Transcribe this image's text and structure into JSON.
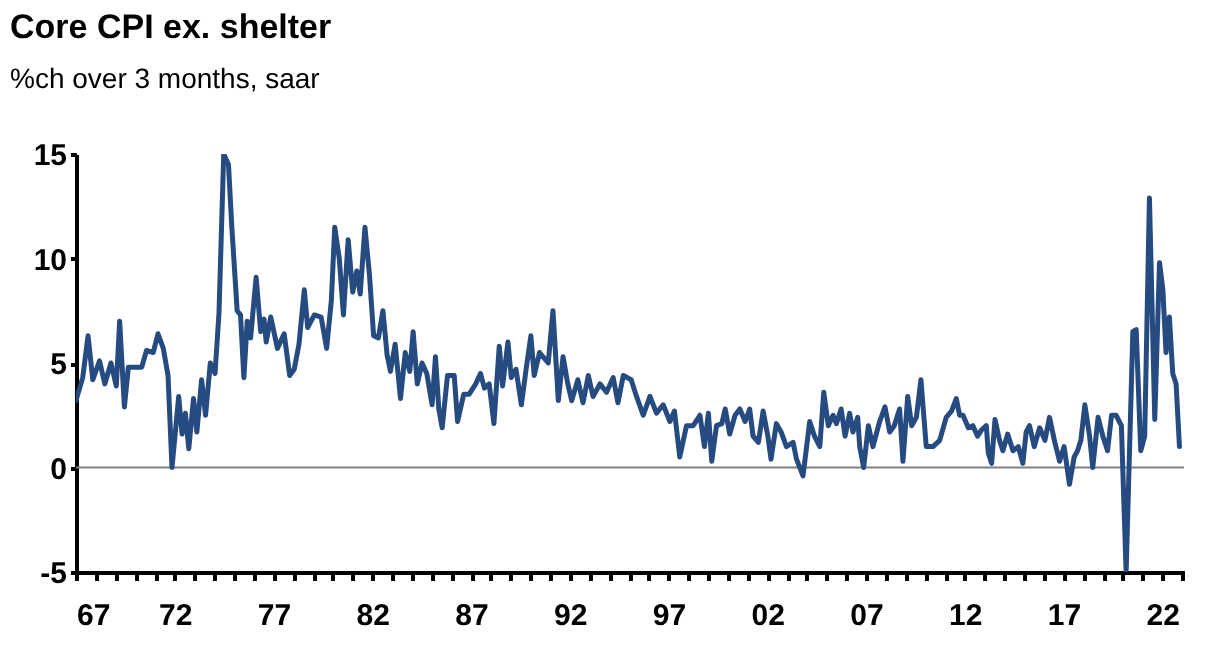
{
  "chart_data": {
    "type": "line",
    "title": "Core CPI ex. shelter",
    "subtitle": "%ch over 3 months, saar",
    "x": [
      1967.0,
      1967.34,
      1967.61,
      1967.85,
      1968.19,
      1968.46,
      1968.77,
      1969.04,
      1969.21,
      1969.45,
      1969.65,
      1970.33,
      1970.57,
      1970.91,
      1971.15,
      1971.42,
      1971.66,
      1971.86,
      1972.2,
      1972.37,
      1972.54,
      1972.71,
      1972.95,
      1973.12,
      1973.36,
      1973.56,
      1973.8,
      1974.04,
      1974.24,
      1974.48,
      1974.72,
      1974.89,
      1975.16,
      1975.33,
      1975.5,
      1975.67,
      1975.84,
      1976.12,
      1976.35,
      1976.52,
      1976.63,
      1976.86,
      1977.2,
      1977.54,
      1977.82,
      1978.05,
      1978.29,
      1978.56,
      1978.73,
      1979.07,
      1979.41,
      1979.69,
      1979.93,
      1980.1,
      1980.33,
      1980.54,
      1980.78,
      1981.01,
      1981.22,
      1981.39,
      1981.63,
      1981.86,
      1982.07,
      1982.31,
      1982.54,
      1982.75,
      1982.92,
      1983.16,
      1983.43,
      1983.67,
      1983.9,
      1984.07,
      1984.28,
      1984.52,
      1984.76,
      1985.03,
      1985.2,
      1985.37,
      1985.54,
      1985.81,
      1986.15,
      1986.32,
      1986.63,
      1986.9,
      1987.24,
      1987.48,
      1987.68,
      1987.92,
      1988.16,
      1988.43,
      1988.6,
      1988.87,
      1989.04,
      1989.28,
      1989.55,
      1989.79,
      1990.03,
      1990.2,
      1990.47,
      1990.91,
      1991.15,
      1991.42,
      1991.66,
      1991.9,
      1992.1,
      1992.41,
      1992.67,
      1992.94,
      1993.18,
      1993.53,
      1993.86,
      1994.2,
      1994.44,
      1994.71,
      1995.11,
      1995.38,
      1995.72,
      1996.06,
      1996.39,
      1996.73,
      1997.07,
      1997.3,
      1997.57,
      1997.91,
      1998.25,
      1998.59,
      1998.82,
      1999.02,
      1999.19,
      1999.43,
      1999.7,
      1999.87,
      2000.1,
      2000.37,
      2000.61,
      2000.88,
      2001.11,
      2001.28,
      2001.55,
      2001.79,
      2002.03,
      2002.19,
      2002.46,
      2002.7,
      2002.97,
      2003.31,
      2003.48,
      2003.81,
      2004.15,
      2004.39,
      2004.66,
      2004.86,
      2005.09,
      2005.33,
      2005.5,
      2005.74,
      2005.94,
      2006.17,
      2006.34,
      2006.58,
      2006.68,
      2006.88,
      2007.12,
      2007.35,
      2007.69,
      2007.96,
      2008.2,
      2008.43,
      2008.7,
      2008.87,
      2009.11,
      2009.31,
      2009.55,
      2009.78,
      2010.05,
      2010.39,
      2010.73,
      2011.06,
      2011.33,
      2011.57,
      2011.74,
      2011.91,
      2012.18,
      2012.41,
      2012.65,
      2012.85,
      2013.09,
      2013.19,
      2013.36,
      2013.53,
      2013.76,
      2013.93,
      2014.17,
      2014.44,
      2014.71,
      2014.94,
      2015.11,
      2015.28,
      2015.52,
      2015.79,
      2016.06,
      2016.29,
      2016.56,
      2016.8,
      2017.03,
      2017.3,
      2017.54,
      2017.71,
      2017.88,
      2018.08,
      2018.32,
      2018.48,
      2018.75,
      2018.99,
      2019.23,
      2019.43,
      2019.66,
      2019.93,
      2020.17,
      2020.51,
      2020.68,
      2020.91,
      2021.11,
      2021.35,
      2021.62,
      2021.86,
      2022.03,
      2022.19,
      2022.36,
      2022.53,
      2022.7,
      2022.87
    ],
    "series": [
      {
        "color": "#264b80",
        "values": [
          3.2,
          4.3,
          6.3,
          4.2,
          5.1,
          4.0,
          5.0,
          3.9,
          7.0,
          2.9,
          4.8,
          4.8,
          5.6,
          5.5,
          6.4,
          5.7,
          4.4,
          0.0,
          3.4,
          1.6,
          2.6,
          0.9,
          3.3,
          1.7,
          4.2,
          2.5,
          5.0,
          4.5,
          7.4,
          15.0,
          14.5,
          11.5,
          7.5,
          7.3,
          4.3,
          7.0,
          6.2,
          9.1,
          6.5,
          7.1,
          6.0,
          7.2,
          5.7,
          6.4,
          4.4,
          4.7,
          5.9,
          8.5,
          6.7,
          7.3,
          7.2,
          5.7,
          8.0,
          11.5,
          10.0,
          7.3,
          10.9,
          8.4,
          9.4,
          8.3,
          11.5,
          9.2,
          6.3,
          6.2,
          7.5,
          5.4,
          4.6,
          5.9,
          3.3,
          5.5,
          4.6,
          6.5,
          4.0,
          5.0,
          4.5,
          3.0,
          5.3,
          2.8,
          1.9,
          4.4,
          4.4,
          2.2,
          3.5,
          3.5,
          4.0,
          4.5,
          3.8,
          4.0,
          2.1,
          5.8,
          3.9,
          6.0,
          4.3,
          4.7,
          3.0,
          4.7,
          6.3,
          4.4,
          5.5,
          5.0,
          7.5,
          3.2,
          5.3,
          4.0,
          3.2,
          4.2,
          3.1,
          4.4,
          3.4,
          4.0,
          3.6,
          4.3,
          3.1,
          4.4,
          4.2,
          3.4,
          2.5,
          3.4,
          2.6,
          3.0,
          2.2,
          2.7,
          0.5,
          2.0,
          2.0,
          2.5,
          1.0,
          2.6,
          0.3,
          2.0,
          2.1,
          2.8,
          1.6,
          2.5,
          2.8,
          2.2,
          2.8,
          1.5,
          1.2,
          2.7,
          1.5,
          0.4,
          2.1,
          1.7,
          1.0,
          1.2,
          0.4,
          -0.4,
          2.2,
          1.5,
          1.0,
          3.6,
          2.0,
          2.5,
          2.1,
          2.8,
          1.5,
          2.6,
          1.7,
          2.4,
          1.0,
          0.0,
          2.0,
          1.0,
          2.2,
          2.9,
          1.7,
          2.0,
          2.8,
          0.3,
          3.4,
          2.0,
          2.4,
          4.2,
          1.0,
          1.0,
          1.3,
          2.4,
          2.7,
          3.3,
          2.5,
          2.5,
          1.9,
          2.0,
          1.5,
          1.8,
          2.0,
          0.7,
          0.2,
          2.3,
          1.3,
          0.8,
          1.6,
          0.8,
          1.0,
          0.2,
          1.7,
          2.0,
          1.0,
          1.9,
          1.3,
          2.4,
          1.2,
          0.3,
          1.0,
          -0.8,
          0.5,
          0.8,
          1.3,
          3.0,
          1.5,
          0.0,
          2.4,
          1.5,
          0.8,
          2.5,
          2.5,
          2.0,
          -5.0,
          6.5,
          6.6,
          0.8,
          1.5,
          12.9,
          2.3,
          9.8,
          8.5,
          5.5,
          7.2,
          4.5,
          4.0,
          1.0
        ]
      }
    ],
    "xlim": [
      1967,
      2023.1
    ],
    "xticks": [
      {
        "value": 1967,
        "label": "67"
      },
      {
        "value": 1968,
        "label": null
      },
      {
        "value": 1969,
        "label": null
      },
      {
        "value": 1970,
        "label": null
      },
      {
        "value": 1971,
        "label": null
      },
      {
        "value": 1972,
        "label": "72"
      },
      {
        "value": 1973,
        "label": null
      },
      {
        "value": 1974,
        "label": null
      },
      {
        "value": 1975,
        "label": null
      },
      {
        "value": 1976,
        "label": null
      },
      {
        "value": 1977,
        "label": "77"
      },
      {
        "value": 1978,
        "label": null
      },
      {
        "value": 1979,
        "label": null
      },
      {
        "value": 1980,
        "label": null
      },
      {
        "value": 1981,
        "label": null
      },
      {
        "value": 1982,
        "label": "82"
      },
      {
        "value": 1983,
        "label": null
      },
      {
        "value": 1984,
        "label": null
      },
      {
        "value": 1985,
        "label": null
      },
      {
        "value": 1986,
        "label": null
      },
      {
        "value": 1987,
        "label": "87"
      },
      {
        "value": 1988,
        "label": null
      },
      {
        "value": 1989,
        "label": null
      },
      {
        "value": 1990,
        "label": null
      },
      {
        "value": 1991,
        "label": null
      },
      {
        "value": 1992,
        "label": "92"
      },
      {
        "value": 1993,
        "label": null
      },
      {
        "value": 1994,
        "label": null
      },
      {
        "value": 1995,
        "label": null
      },
      {
        "value": 1996,
        "label": null
      },
      {
        "value": 1997,
        "label": "97"
      },
      {
        "value": 1998,
        "label": null
      },
      {
        "value": 1999,
        "label": null
      },
      {
        "value": 2000,
        "label": null
      },
      {
        "value": 2001,
        "label": null
      },
      {
        "value": 2002,
        "label": "02"
      },
      {
        "value": 2003,
        "label": null
      },
      {
        "value": 2004,
        "label": null
      },
      {
        "value": 2005,
        "label": null
      },
      {
        "value": 2006,
        "label": null
      },
      {
        "value": 2007,
        "label": "07"
      },
      {
        "value": 2008,
        "label": null
      },
      {
        "value": 2009,
        "label": null
      },
      {
        "value": 2010,
        "label": null
      },
      {
        "value": 2011,
        "label": null
      },
      {
        "value": 2012,
        "label": "12"
      },
      {
        "value": 2013,
        "label": null
      },
      {
        "value": 2014,
        "label": null
      },
      {
        "value": 2015,
        "label": null
      },
      {
        "value": 2016,
        "label": null
      },
      {
        "value": 2017,
        "label": "17"
      },
      {
        "value": 2018,
        "label": null
      },
      {
        "value": 2019,
        "label": null
      },
      {
        "value": 2020,
        "label": null
      },
      {
        "value": 2021,
        "label": null
      },
      {
        "value": 2022,
        "label": "22"
      },
      {
        "value": 2023,
        "label": null
      }
    ],
    "ylim": [
      -5,
      15
    ],
    "yticks": [
      -5,
      0,
      5,
      10,
      15
    ],
    "ref_lines": [
      {
        "axis": "y",
        "value": 0,
        "color": "#808080"
      }
    ],
    "grid": false
  }
}
